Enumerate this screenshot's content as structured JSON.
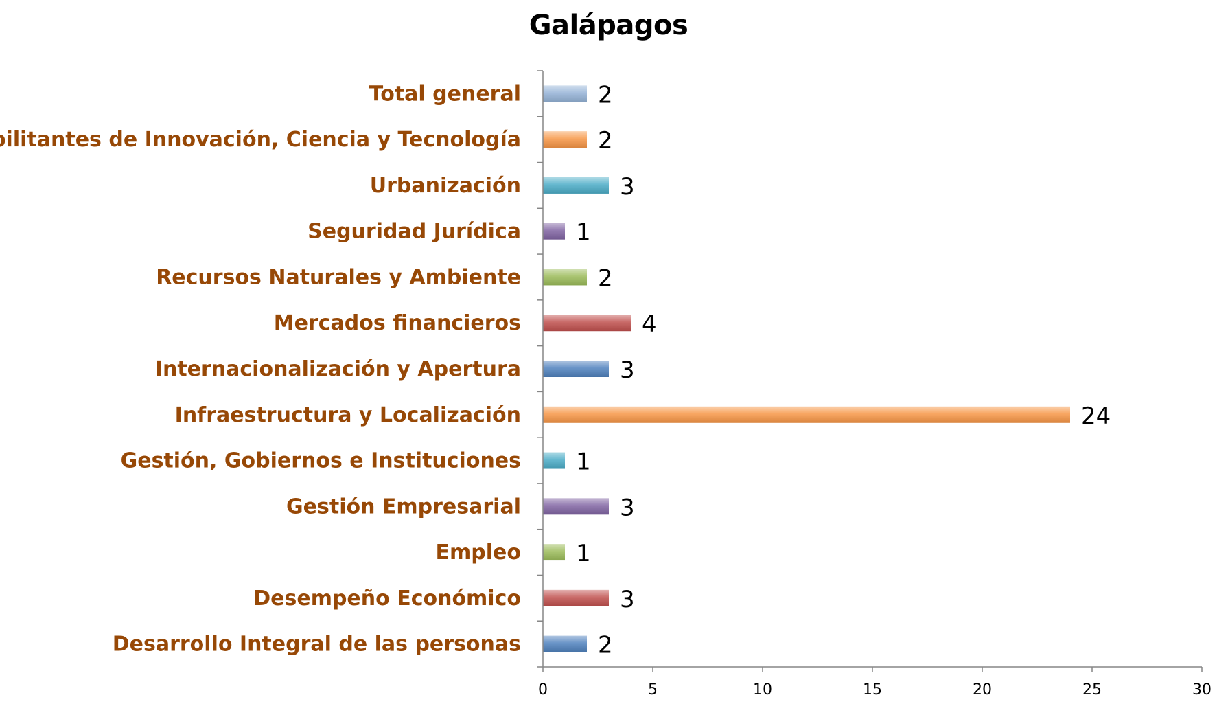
{
  "chart_data": {
    "type": "bar",
    "orientation": "horizontal",
    "title": "Galápagos",
    "categories": [
      "Desarrollo Integral de las personas",
      "Desempeño Económico",
      "Empleo",
      "Gestión Empresarial",
      "Gestión, Gobiernos e Instituciones",
      "Infraestructura y Localización",
      "Internacionalización y Apertura",
      "Mercados financieros",
      "Recursos Naturales y Ambiente",
      "Seguridad Jurídica",
      "Urbanización",
      "Habilitantes de Innovación, Ciencia y Tecnología",
      "Total general"
    ],
    "values": [
      2,
      3,
      1,
      3,
      1,
      24,
      3,
      4,
      2,
      1,
      3,
      2,
      2
    ],
    "data_labels": [
      "2",
      "3",
      "1",
      "3",
      "1",
      "24",
      "3",
      "4",
      "2",
      "1",
      "3",
      "2",
      "2"
    ],
    "bar_colors": [
      "#4f81bd",
      "#c0504d",
      "#9bbb59",
      "#8064a2",
      "#4bacc6",
      "#f79646",
      "#4f81bd",
      "#c0504d",
      "#9bbb59",
      "#8064a2",
      "#4bacc6",
      "#f79646",
      "#95b3d7"
    ],
    "xlim": [
      0,
      30
    ],
    "x_ticks": [
      0,
      5,
      10,
      15,
      20,
      25,
      30
    ],
    "x_tick_labels": [
      "0",
      "5",
      "10",
      "15",
      "20",
      "25",
      "30"
    ],
    "xlabel": "",
    "ylabel": "",
    "grid": false,
    "legend": "none",
    "category_label_color": "#974806"
  }
}
